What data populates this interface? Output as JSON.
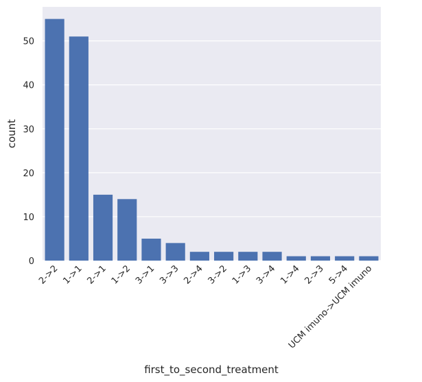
{
  "chart_data": {
    "type": "bar",
    "categories": [
      "2->2",
      "1->1",
      "2->1",
      "1->2",
      "3->1",
      "3->3",
      "2->4",
      "3->2",
      "1->3",
      "3->4",
      "1->4",
      "2->3",
      "5->4",
      "UCM imuno->UCM imuno"
    ],
    "values": [
      55,
      51,
      15,
      14,
      5,
      4,
      2,
      2,
      2,
      2,
      1,
      1,
      1,
      1
    ],
    "xlabel": "first_to_second_treatment",
    "ylabel": "count",
    "ylim": [
      0,
      57.75
    ],
    "yticks": [
      0,
      10,
      20,
      30,
      40,
      50
    ],
    "grid": true,
    "bar_color": "#4c72b0",
    "background_color": "#eaeaf2"
  }
}
